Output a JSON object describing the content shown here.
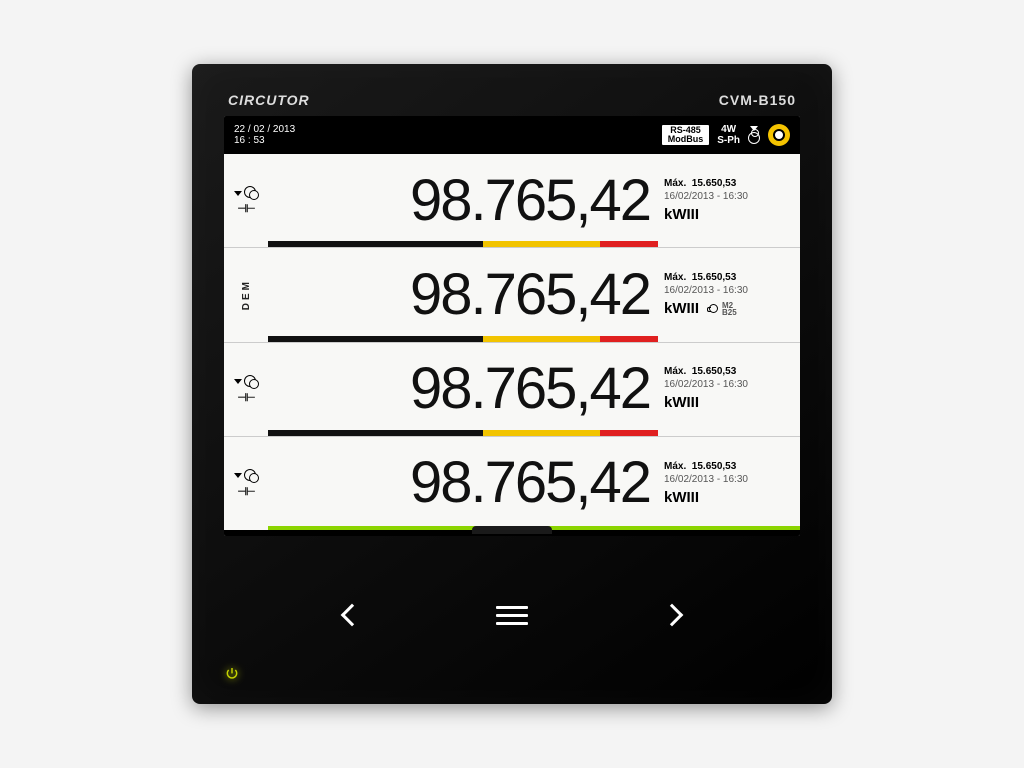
{
  "brand": "CIRCUTOR",
  "model": "CVM-B150",
  "status": {
    "date": "22 / 02 / 2013",
    "time": "16 : 53",
    "protocol_top": "RS-485",
    "protocol_bottom": "ModBus",
    "wiring_top": "4W",
    "wiring_bottom": "S-Ph"
  },
  "colors": {
    "bezel": "#000000",
    "screen_bg": "#f8f8f6",
    "accent_yellow": "#f5c400",
    "bar_black": "#111111",
    "bar_yellow": "#f2c400",
    "bar_red": "#e02020",
    "bar_green": "#8bd400",
    "power_glow": "#c5d400"
  },
  "rows": [
    {
      "left_type": "cap",
      "value": "98.765,42",
      "max_label": "Máx.",
      "max_value": "15.650,53",
      "timestamp": "16/02/2013 - 16:30",
      "unit": "kWIII",
      "bar": [
        {
          "color": "#111111",
          "pct": 55
        },
        {
          "color": "#f2c400",
          "pct": 30
        },
        {
          "color": "#e02020",
          "pct": 15
        }
      ]
    },
    {
      "left_type": "dem",
      "left_label": "DEM",
      "value": "98.765,42",
      "max_label": "Máx.",
      "max_value": "15.650,53",
      "timestamp": "16/02/2013 - 16:30",
      "unit": "kWIII",
      "extra_m": "M2",
      "extra_b": "B25",
      "bar": [
        {
          "color": "#111111",
          "pct": 55
        },
        {
          "color": "#f2c400",
          "pct": 30
        },
        {
          "color": "#e02020",
          "pct": 15
        }
      ]
    },
    {
      "left_type": "cap",
      "value": "98.765,42",
      "max_label": "Máx.",
      "max_value": "15.650,53",
      "timestamp": "16/02/2013 - 16:30",
      "unit": "kWIII",
      "bar": [
        {
          "color": "#111111",
          "pct": 55
        },
        {
          "color": "#f2c400",
          "pct": 30
        },
        {
          "color": "#e02020",
          "pct": 15
        }
      ]
    },
    {
      "left_type": "cap",
      "value": "98.765,42",
      "max_label": "Máx.",
      "max_value": "15.650,53",
      "timestamp": "16/02/2013 - 16:30",
      "unit": "kWIII",
      "bar": [
        {
          "color": "#8bd400",
          "pct": 100
        }
      ]
    }
  ]
}
